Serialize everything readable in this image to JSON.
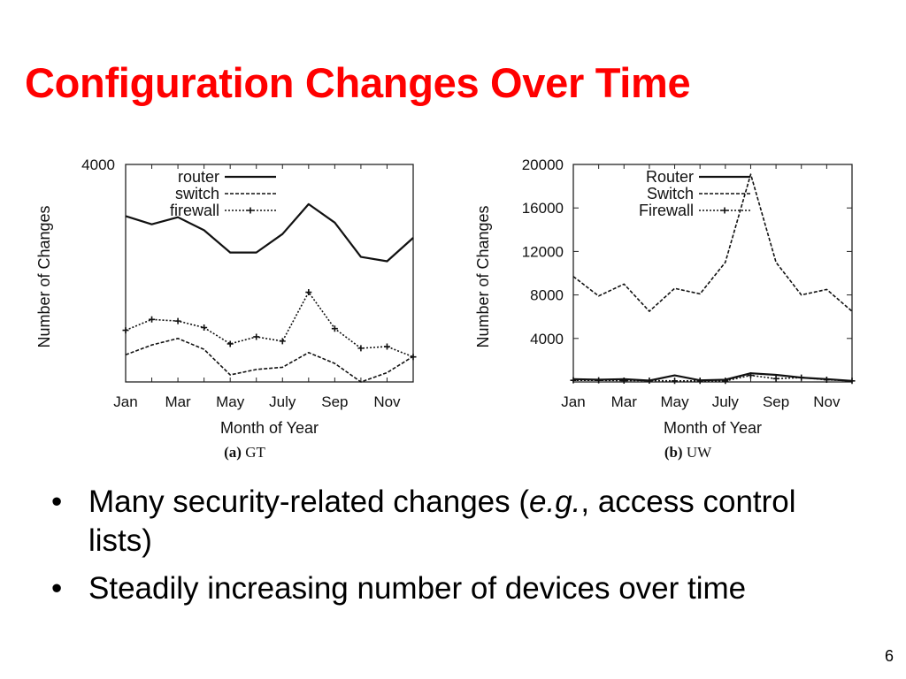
{
  "slide": {
    "title": "Configuration Changes Over Time",
    "bullets": [
      {
        "pre": "Many security-related changes (",
        "em": "e.g.",
        "post": ", access control lists)"
      },
      {
        "pre": "Steadily increasing number of devices over time",
        "em": "",
        "post": ""
      }
    ],
    "bullet_glyph": "•",
    "page_number": "6"
  },
  "chart_data": [
    {
      "type": "line",
      "caption": {
        "tag": "(a)",
        "text": "GT"
      },
      "xlabel": "Month of Year",
      "ylabel": "Number of Changes",
      "x_ticks": [
        "Jan",
        "Mar",
        "May",
        "July",
        "Sep",
        "Nov"
      ],
      "y_ticks": [
        "4000"
      ],
      "ylim": [
        0,
        4000
      ],
      "categories": [
        "Jan",
        "Feb",
        "Mar",
        "Apr",
        "May",
        "Jun",
        "Jul",
        "Aug",
        "Sep",
        "Oct",
        "Nov",
        "Dec"
      ],
      "legend_position": "top-left",
      "series": [
        {
          "name": "router",
          "style": "solid",
          "values": [
            3050,
            2900,
            3030,
            2790,
            2380,
            2380,
            2720,
            3270,
            2930,
            2300,
            2220,
            2650
          ]
        },
        {
          "name": "switch",
          "style": "dashed",
          "values": [
            500,
            680,
            800,
            600,
            130,
            230,
            270,
            540,
            340,
            0,
            170,
            470
          ]
        },
        {
          "name": "firewall",
          "style": "dotted-plus",
          "values": [
            950,
            1150,
            1120,
            1000,
            700,
            830,
            750,
            1650,
            980,
            620,
            650,
            460
          ]
        }
      ]
    },
    {
      "type": "line",
      "caption": {
        "tag": "(b)",
        "text": "UW"
      },
      "xlabel": "Month of Year",
      "ylabel": "Number of Changes",
      "x_ticks": [
        "Jan",
        "Mar",
        "May",
        "July",
        "Sep",
        "Nov"
      ],
      "y_ticks": [
        "4000",
        "8000",
        "12000",
        "16000",
        "20000"
      ],
      "ylim": [
        0,
        20000
      ],
      "categories": [
        "Jan",
        "Feb",
        "Mar",
        "Apr",
        "May",
        "Jun",
        "Jul",
        "Aug",
        "Sep",
        "Oct",
        "Nov",
        "Dec"
      ],
      "legend_position": "top-right",
      "series": [
        {
          "name": "Router",
          "style": "solid",
          "values": [
            250,
            200,
            250,
            120,
            600,
            150,
            200,
            800,
            650,
            400,
            250,
            100
          ]
        },
        {
          "name": "Switch",
          "style": "dashed",
          "values": [
            9700,
            7900,
            9000,
            6500,
            8600,
            8100,
            11000,
            19100,
            11000,
            8000,
            8500,
            6500
          ]
        },
        {
          "name": "Firewall",
          "style": "dotted-plus",
          "values": [
            150,
            150,
            120,
            120,
            100,
            100,
            100,
            600,
            300,
            400,
            200,
            100
          ]
        }
      ]
    }
  ]
}
